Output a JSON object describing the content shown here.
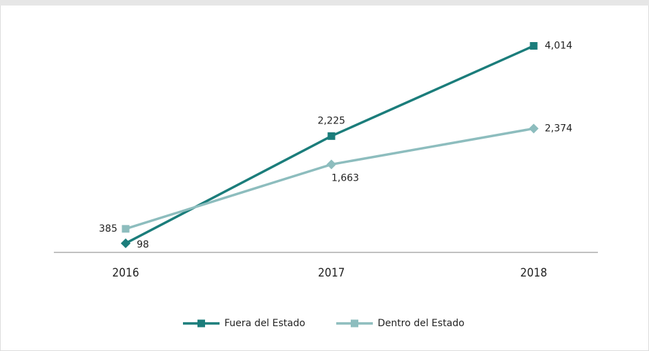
{
  "chart_data": {
    "type": "line",
    "categories": [
      "2016",
      "2017",
      "2018"
    ],
    "series": [
      {
        "name": "Fuera del Estado",
        "color": "#1b7d7b",
        "values": [
          98,
          2225,
          4014
        ],
        "value_labels": [
          "98",
          "2,225",
          "4,014"
        ],
        "markers": [
          "diamond",
          "square",
          "square"
        ]
      },
      {
        "name": "Dentro del Estado",
        "color": "#8dbdbe",
        "values": [
          385,
          1663,
          2374
        ],
        "value_labels": [
          "385",
          "1,663",
          "2,374"
        ],
        "markers": [
          "square",
          "diamond",
          "diamond"
        ]
      }
    ],
    "ylim": [
      0,
      4500
    ]
  }
}
